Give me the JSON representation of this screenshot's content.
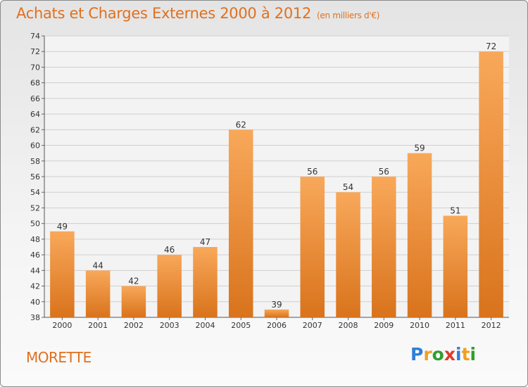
{
  "header": {
    "title": "Achats et Charges Externes 2000 à 2012",
    "unit": "(en milliers d'€)"
  },
  "footer": {
    "commune": "MORETTE",
    "brand_letters": [
      "P",
      "r",
      "o",
      "x",
      "i",
      "t",
      "i"
    ],
    "brand_colors": [
      "#2f7fd8",
      "#f0a020",
      "#2f9f2f",
      "#e03a2a",
      "#2f7fd8",
      "#f0a020",
      "#2f9f2f"
    ]
  },
  "colors": {
    "bar_top": "#f8a85a",
    "bar_bottom": "#d9731c",
    "title": "#e0701f"
  },
  "chart_data": {
    "type": "bar",
    "title": "Achats et Charges Externes 2000 à 2012",
    "subtitle": "(en milliers d'€)",
    "categories": [
      "2000",
      "2001",
      "2002",
      "2003",
      "2004",
      "2005",
      "2006",
      "2007",
      "2008",
      "2009",
      "2010",
      "2011",
      "2012"
    ],
    "values": [
      49,
      44,
      42,
      46,
      47,
      62,
      39,
      56,
      54,
      56,
      59,
      51,
      72
    ],
    "ylim": [
      38,
      74
    ],
    "yticks": [
      38,
      40,
      42,
      44,
      46,
      48,
      50,
      52,
      54,
      56,
      58,
      60,
      62,
      64,
      66,
      68,
      70,
      72,
      74
    ],
    "grid": true,
    "legend": "none"
  }
}
